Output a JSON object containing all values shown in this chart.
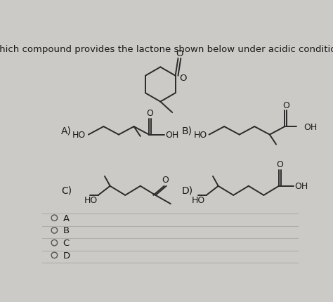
{
  "title": "Which compound provides the lactone shown below under acidic conditions?",
  "title_fontsize": 9.5,
  "bg_color": "#cccac6",
  "text_color": "#1a1a1a",
  "choices": [
    "A",
    "B",
    "C",
    "D"
  ]
}
